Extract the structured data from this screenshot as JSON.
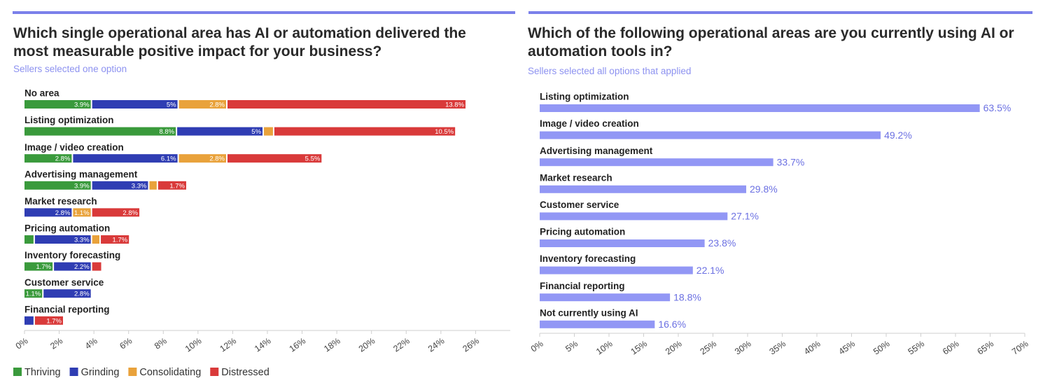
{
  "chart_data": [
    {
      "type": "bar",
      "orientation": "horizontal",
      "stacked": true,
      "title": "Which single operational area has AI or automation delivered the most measurable positive impact for your business?",
      "subtitle": "Sellers selected one option",
      "categories": [
        "No area",
        "Listing optimization",
        "Image / video creation",
        "Advertising management",
        "Market research",
        "Pricing automation",
        "Inventory forecasting",
        "Customer service",
        "Financial reporting"
      ],
      "series": [
        {
          "name": "Thriving",
          "color": "#3a9a3c",
          "values": [
            3.9,
            8.8,
            2.8,
            3.9,
            null,
            0.6,
            1.7,
            1.1,
            null
          ],
          "value_labels": [
            "3.9%",
            "8.8%",
            "2.8%",
            "3.9%",
            null,
            null,
            "1.7%",
            "1.1%",
            null
          ]
        },
        {
          "name": "Grinding",
          "color": "#2f3db3",
          "values": [
            5,
            5,
            6.1,
            3.3,
            2.8,
            3.3,
            2.2,
            2.8,
            0.6
          ],
          "value_labels": [
            "5%",
            "5%",
            "6.1%",
            "3.3%",
            "2.8%",
            "3.3%",
            "2.2%",
            "2.8%",
            null
          ]
        },
        {
          "name": "Consolidating",
          "color": "#e9a23b",
          "values": [
            2.8,
            0.6,
            2.8,
            0.5,
            1.1,
            0.5,
            null,
            null,
            null
          ],
          "value_labels": [
            "2.8%",
            null,
            "2.8%",
            null,
            "1.1%",
            null,
            null,
            null,
            null
          ]
        },
        {
          "name": "Distressed",
          "color": "#d93a3a",
          "values": [
            13.8,
            10.5,
            5.5,
            1.7,
            2.8,
            1.7,
            0.6,
            null,
            1.7
          ],
          "value_labels": [
            "13.8%",
            "10.5%",
            "5.5%",
            "1.7%",
            "2.8%",
            "1.7%",
            null,
            null,
            "1.7%"
          ]
        }
      ],
      "xlim": [
        0,
        28
      ],
      "xticks": [
        {
          "value": 0,
          "label": "0%"
        },
        {
          "value": 2,
          "label": "2%"
        },
        {
          "value": 4,
          "label": "4%"
        },
        {
          "value": 6,
          "label": "6%"
        },
        {
          "value": 8,
          "label": "8%"
        },
        {
          "value": 10,
          "label": "10%"
        },
        {
          "value": 12,
          "label": "12%"
        },
        {
          "value": 14,
          "label": "14%"
        },
        {
          "value": 16,
          "label": "16%"
        },
        {
          "value": 18,
          "label": "18%"
        },
        {
          "value": 20,
          "label": "20%"
        },
        {
          "value": 22,
          "label": "22%"
        },
        {
          "value": 24,
          "label": "24%"
        },
        {
          "value": 26,
          "label": "26%"
        }
      ],
      "legend": "bottom-left"
    },
    {
      "type": "bar",
      "orientation": "horizontal",
      "title": "Which of the following operational areas are you currently using AI or automation tools in?",
      "subtitle": "Sellers selected all options that applied",
      "categories": [
        "Listing optimization",
        "Image / video creation",
        "Advertising management",
        "Market research",
        "Customer service",
        "Pricing automation",
        "Inventory forecasting",
        "Financial reporting",
        "Not currently using AI"
      ],
      "color": "#9297f5",
      "label_color": "#6b70e2",
      "values": [
        63.5,
        49.2,
        33.7,
        29.8,
        27.1,
        23.8,
        22.1,
        18.8,
        16.6
      ],
      "value_labels": [
        "63.5%",
        "49.2%",
        "33.7%",
        "29.8%",
        "27.1%",
        "23.8%",
        "22.1%",
        "18.8%",
        "16.6%"
      ],
      "xlim": [
        0,
        70
      ],
      "xticks": [
        {
          "value": 0,
          "label": "0%"
        },
        {
          "value": 5,
          "label": "5%"
        },
        {
          "value": 10,
          "label": "10%"
        },
        {
          "value": 15,
          "label": "15%"
        },
        {
          "value": 20,
          "label": "20%"
        },
        {
          "value": 25,
          "label": "25%"
        },
        {
          "value": 30,
          "label": "30%"
        },
        {
          "value": 35,
          "label": "35%"
        },
        {
          "value": 40,
          "label": "40%"
        },
        {
          "value": 45,
          "label": "45%"
        },
        {
          "value": 50,
          "label": "50%"
        },
        {
          "value": 55,
          "label": "55%"
        },
        {
          "value": 60,
          "label": "60%"
        },
        {
          "value": 65,
          "label": "65%"
        },
        {
          "value": 70,
          "label": "70%"
        }
      ]
    }
  ]
}
